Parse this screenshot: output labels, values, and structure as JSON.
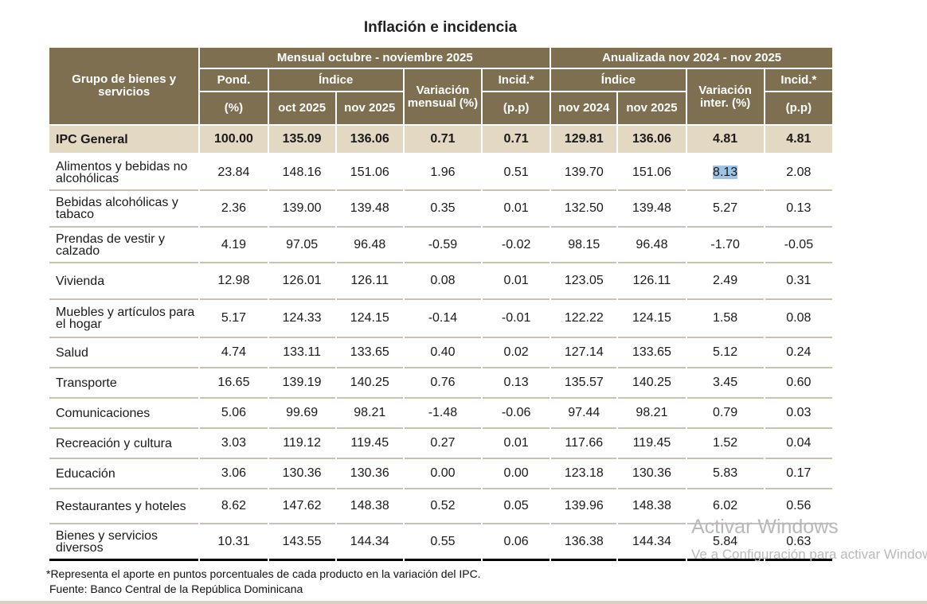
{
  "title": "Inflación e incidencia",
  "header": {
    "group_label": "Grupo de bienes y servicios",
    "monthly_label": "Mensual octubre - noviembre 2025",
    "annual_label": "Anualizada nov 2024 - nov 2025",
    "pond": "Pond.",
    "pond_unit": "(%)",
    "indice": "Índice",
    "var_mensual": "Variación mensual (%)",
    "incid": "Incid.*",
    "incid_unit": "(p.p)",
    "oct_2025": "oct 2025",
    "nov_2025": "nov 2025",
    "nov_2024": "nov 2024",
    "var_inter": "Variación inter. (%)"
  },
  "rows": [
    {
      "name": "IPC General",
      "pond": "100.00",
      "oct25": "135.09",
      "nov25": "136.06",
      "var_m": "0.71",
      "inc_m": "0.71",
      "nov24": "129.81",
      "nov25b": "136.06",
      "var_i": "4.81",
      "inc_i": "4.81"
    },
    {
      "name": "Alimentos y bebidas no alcohólicas",
      "pond": "23.84",
      "oct25": "148.16",
      "nov25": "151.06",
      "var_m": "1.96",
      "inc_m": "0.51",
      "nov24": "139.70",
      "nov25b": "151.06",
      "var_i": "8.13",
      "inc_i": "2.08"
    },
    {
      "name": "Bebidas alcohólicas y tabaco",
      "pond": "2.36",
      "oct25": "139.00",
      "nov25": "139.48",
      "var_m": "0.35",
      "inc_m": "0.01",
      "nov24": "132.50",
      "nov25b": "139.48",
      "var_i": "5.27",
      "inc_i": "0.13"
    },
    {
      "name": "Prendas de vestir y calzado",
      "pond": "4.19",
      "oct25": "97.05",
      "nov25": "96.48",
      "var_m": "-0.59",
      "inc_m": "-0.02",
      "nov24": "98.15",
      "nov25b": "96.48",
      "var_i": "-1.70",
      "inc_i": "-0.05"
    },
    {
      "name": "Vivienda",
      "pond": "12.98",
      "oct25": "126.01",
      "nov25": "126.11",
      "var_m": "0.08",
      "inc_m": "0.01",
      "nov24": "123.05",
      "nov25b": "126.11",
      "var_i": "2.49",
      "inc_i": "0.31"
    },
    {
      "name": "Muebles y artículos para el hogar",
      "pond": "5.17",
      "oct25": "124.33",
      "nov25": "124.15",
      "var_m": "-0.14",
      "inc_m": "-0.01",
      "nov24": "122.22",
      "nov25b": "124.15",
      "var_i": "1.58",
      "inc_i": "0.08"
    },
    {
      "name": "Salud",
      "pond": "4.74",
      "oct25": "133.11",
      "nov25": "133.65",
      "var_m": "0.40",
      "inc_m": "0.02",
      "nov24": "127.14",
      "nov25b": "133.65",
      "var_i": "5.12",
      "inc_i": "0.24"
    },
    {
      "name": "Transporte",
      "pond": "16.65",
      "oct25": "139.19",
      "nov25": "140.25",
      "var_m": "0.76",
      "inc_m": "0.13",
      "nov24": "135.57",
      "nov25b": "140.25",
      "var_i": "3.45",
      "inc_i": "0.60"
    },
    {
      "name": "Comunicaciones",
      "pond": "5.06",
      "oct25": "99.69",
      "nov25": "98.21",
      "var_m": "-1.48",
      "inc_m": "-0.06",
      "nov24": "97.44",
      "nov25b": "98.21",
      "var_i": "0.79",
      "inc_i": "0.03"
    },
    {
      "name": "Recreación y cultura",
      "pond": "3.03",
      "oct25": "119.12",
      "nov25": "119.45",
      "var_m": "0.27",
      "inc_m": "0.01",
      "nov24": "117.66",
      "nov25b": "119.45",
      "var_i": "1.52",
      "inc_i": "0.04"
    },
    {
      "name": "Educación",
      "pond": "3.06",
      "oct25": "130.36",
      "nov25": "130.36",
      "var_m": "0.00",
      "inc_m": "0.00",
      "nov24": "123.18",
      "nov25b": "130.36",
      "var_i": "5.83",
      "inc_i": "0.17"
    },
    {
      "name": "Restaurantes y hoteles",
      "pond": "8.62",
      "oct25": "147.62",
      "nov25": "148.38",
      "var_m": "0.52",
      "inc_m": "0.05",
      "nov24": "139.96",
      "nov25b": "148.38",
      "var_i": "6.02",
      "inc_i": "0.56"
    },
    {
      "name": "Bienes y servicios diversos",
      "pond": "10.31",
      "oct25": "143.55",
      "nov25": "144.34",
      "var_m": "0.55",
      "inc_m": "0.06",
      "nov24": "136.38",
      "nov25b": "144.34",
      "var_i": "5.84",
      "inc_i": "0.63"
    }
  ],
  "footnote": "*Representa el aporte en puntos porcentuales de cada producto en la variación del IPC.",
  "source": "Fuente: Banco Central de la República Dominicana",
  "watermark": {
    "line1": "Activar Windows",
    "line2": "Ve a Configuración para activar Windows."
  },
  "colors": {
    "header_bg": "#7d6f4f",
    "general_row_bg": "#e3d9c2",
    "highlight": "#9fc3e5"
  }
}
